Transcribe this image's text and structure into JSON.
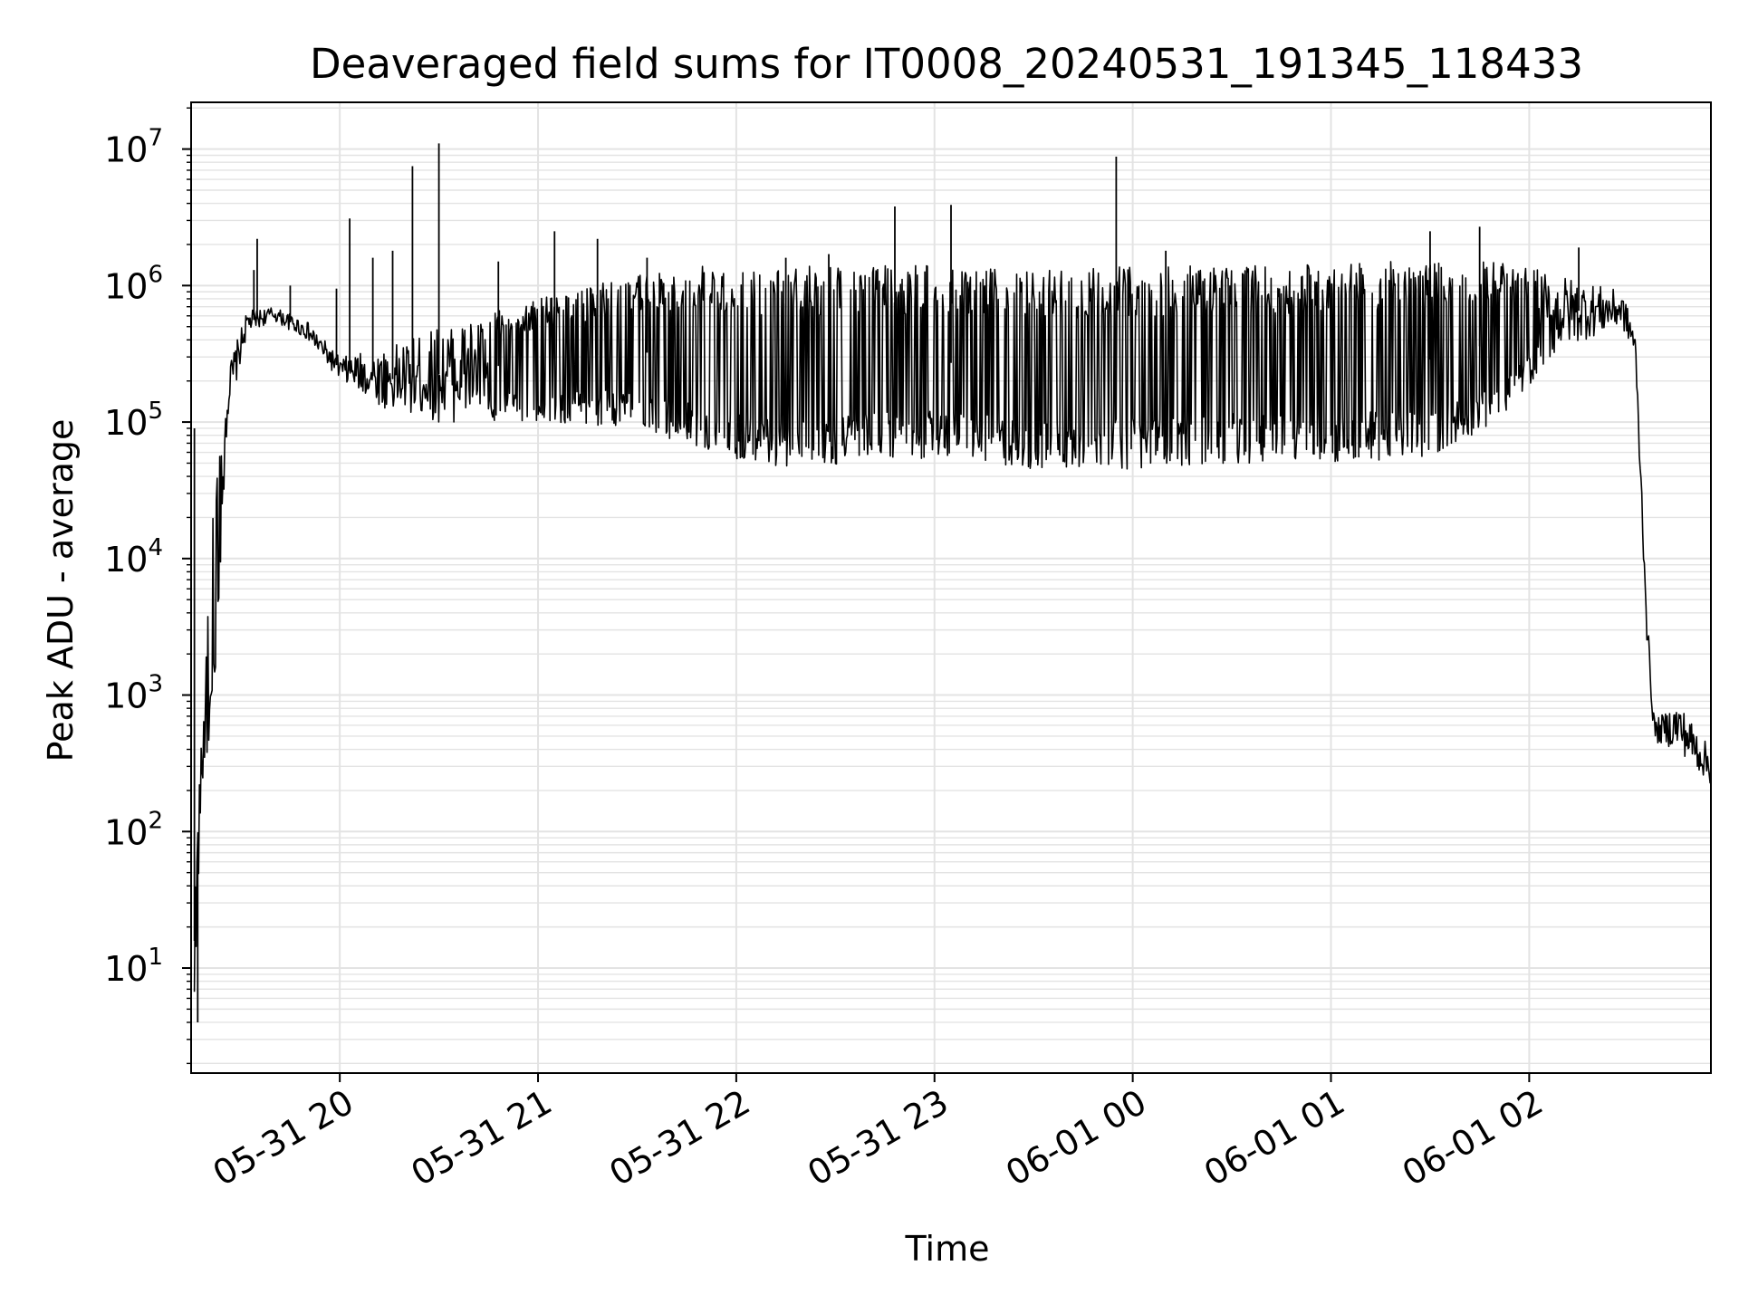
{
  "chart_data": {
    "type": "line",
    "title": "Deaveraged field sums for IT0008_20240531_191345_118433",
    "xlabel": "Time",
    "ylabel": "Peak ADU - average",
    "y_scale": "log",
    "grid": true,
    "x_range": [
      "2024-05-31 19:15",
      "2024-06-01 02:55"
    ],
    "y_range": [
      1.7,
      22000000
    ],
    "x_ticks": [
      {
        "value": "2024-05-31 20:00",
        "label": "05-31 20"
      },
      {
        "value": "2024-05-31 21:00",
        "label": "05-31 21"
      },
      {
        "value": "2024-05-31 22:00",
        "label": "05-31 22"
      },
      {
        "value": "2024-05-31 23:00",
        "label": "05-31 23"
      },
      {
        "value": "2024-06-01 00:00",
        "label": "06-01 00"
      },
      {
        "value": "2024-06-01 01:00",
        "label": "06-01 01"
      },
      {
        "value": "2024-06-01 02:00",
        "label": "06-01 02"
      }
    ],
    "y_ticks": [
      {
        "value": 10,
        "base": "10",
        "exp": "1"
      },
      {
        "value": 100,
        "base": "10",
        "exp": "2"
      },
      {
        "value": 1000,
        "base": "10",
        "exp": "3"
      },
      {
        "value": 10000,
        "base": "10",
        "exp": "4"
      },
      {
        "value": 100000,
        "base": "10",
        "exp": "5"
      },
      {
        "value": 1000000,
        "base": "10",
        "exp": "6"
      },
      {
        "value": 10000000,
        "base": "10",
        "exp": "7"
      }
    ],
    "series_color": "#000000",
    "envelope": [
      {
        "t": "2024-05-31 19:16",
        "low": 5,
        "high": 50
      },
      {
        "t": "2024-05-31 19:18",
        "low": 150,
        "high": 400
      },
      {
        "t": "2024-05-31 19:22",
        "low": 1000,
        "high": 30000
      },
      {
        "t": "2024-05-31 19:26",
        "low": 100000,
        "high": 250000
      },
      {
        "t": "2024-05-31 19:32",
        "low": 450000,
        "high": 650000
      },
      {
        "t": "2024-05-31 19:40",
        "low": 550000,
        "high": 700000
      },
      {
        "t": "2024-05-31 19:50",
        "low": 400000,
        "high": 550000
      },
      {
        "t": "2024-05-31 20:00",
        "low": 200000,
        "high": 300000
      },
      {
        "t": "2024-05-31 20:15",
        "low": 120000,
        "high": 350000
      },
      {
        "t": "2024-05-31 20:30",
        "low": 100000,
        "high": 500000
      },
      {
        "t": "2024-05-31 21:00",
        "low": 100000,
        "high": 800000
      },
      {
        "t": "2024-05-31 21:30",
        "low": 90000,
        "high": 1200000
      },
      {
        "t": "2024-05-31 21:50",
        "low": 60000,
        "high": 1400000
      },
      {
        "t": "2024-05-31 22:10",
        "low": 45000,
        "high": 1400000
      },
      {
        "t": "2024-05-31 23:00",
        "low": 55000,
        "high": 1400000
      },
      {
        "t": "2024-05-31 23:30",
        "low": 45000,
        "high": 1300000
      },
      {
        "t": "2024-06-01 00:00",
        "low": 45000,
        "high": 1400000
      },
      {
        "t": "2024-06-01 00:30",
        "low": 50000,
        "high": 1400000
      },
      {
        "t": "2024-06-01 01:00",
        "low": 50000,
        "high": 1500000
      },
      {
        "t": "2024-06-01 01:30",
        "low": 55000,
        "high": 1500000
      },
      {
        "t": "2024-06-01 01:50",
        "low": 100000,
        "high": 1500000
      },
      {
        "t": "2024-06-01 02:10",
        "low": 350000,
        "high": 1200000
      },
      {
        "t": "2024-06-01 02:28",
        "low": 500000,
        "high": 900000
      },
      {
        "t": "2024-06-01 02:32",
        "low": 300000,
        "high": 500000
      },
      {
        "t": "2024-06-01 02:36",
        "low": 1500,
        "high": 3000
      },
      {
        "t": "2024-06-01 02:38",
        "low": 450,
        "high": 650
      },
      {
        "t": "2024-06-01 02:45",
        "low": 400,
        "high": 900
      },
      {
        "t": "2024-06-01 02:55",
        "low": 220,
        "high": 400
      }
    ],
    "spikes": [
      {
        "t": "2024-05-31 19:16",
        "value": 90000
      },
      {
        "t": "2024-05-31 19:17",
        "value": 4
      },
      {
        "t": "2024-05-31 19:34",
        "value": 1300000
      },
      {
        "t": "2024-05-31 19:35",
        "value": 2200000
      },
      {
        "t": "2024-05-31 19:45",
        "value": 1000000
      },
      {
        "t": "2024-05-31 19:59",
        "value": 950000
      },
      {
        "t": "2024-05-31 20:03",
        "value": 3100000
      },
      {
        "t": "2024-05-31 20:10",
        "value": 1600000
      },
      {
        "t": "2024-05-31 20:16",
        "value": 1800000
      },
      {
        "t": "2024-05-31 20:22",
        "value": 7500000
      },
      {
        "t": "2024-05-31 20:30",
        "value": 11000000
      },
      {
        "t": "2024-05-31 20:48",
        "value": 1500000
      },
      {
        "t": "2024-05-31 21:05",
        "value": 2500000
      },
      {
        "t": "2024-05-31 21:18",
        "value": 2200000
      },
      {
        "t": "2024-05-31 21:33",
        "value": 1600000
      },
      {
        "t": "2024-05-31 22:15",
        "value": 1600000
      },
      {
        "t": "2024-05-31 22:28",
        "value": 1700000
      },
      {
        "t": "2024-05-31 22:48",
        "value": 3800000
      },
      {
        "t": "2024-05-31 23:05",
        "value": 3900000
      },
      {
        "t": "2024-05-31 23:55",
        "value": 8800000
      },
      {
        "t": "2024-06-01 00:10",
        "value": 1800000
      },
      {
        "t": "2024-06-01 01:30",
        "value": 2500000
      },
      {
        "t": "2024-06-01 01:45",
        "value": 2700000
      },
      {
        "t": "2024-06-01 02:15",
        "value": 1900000
      }
    ]
  }
}
